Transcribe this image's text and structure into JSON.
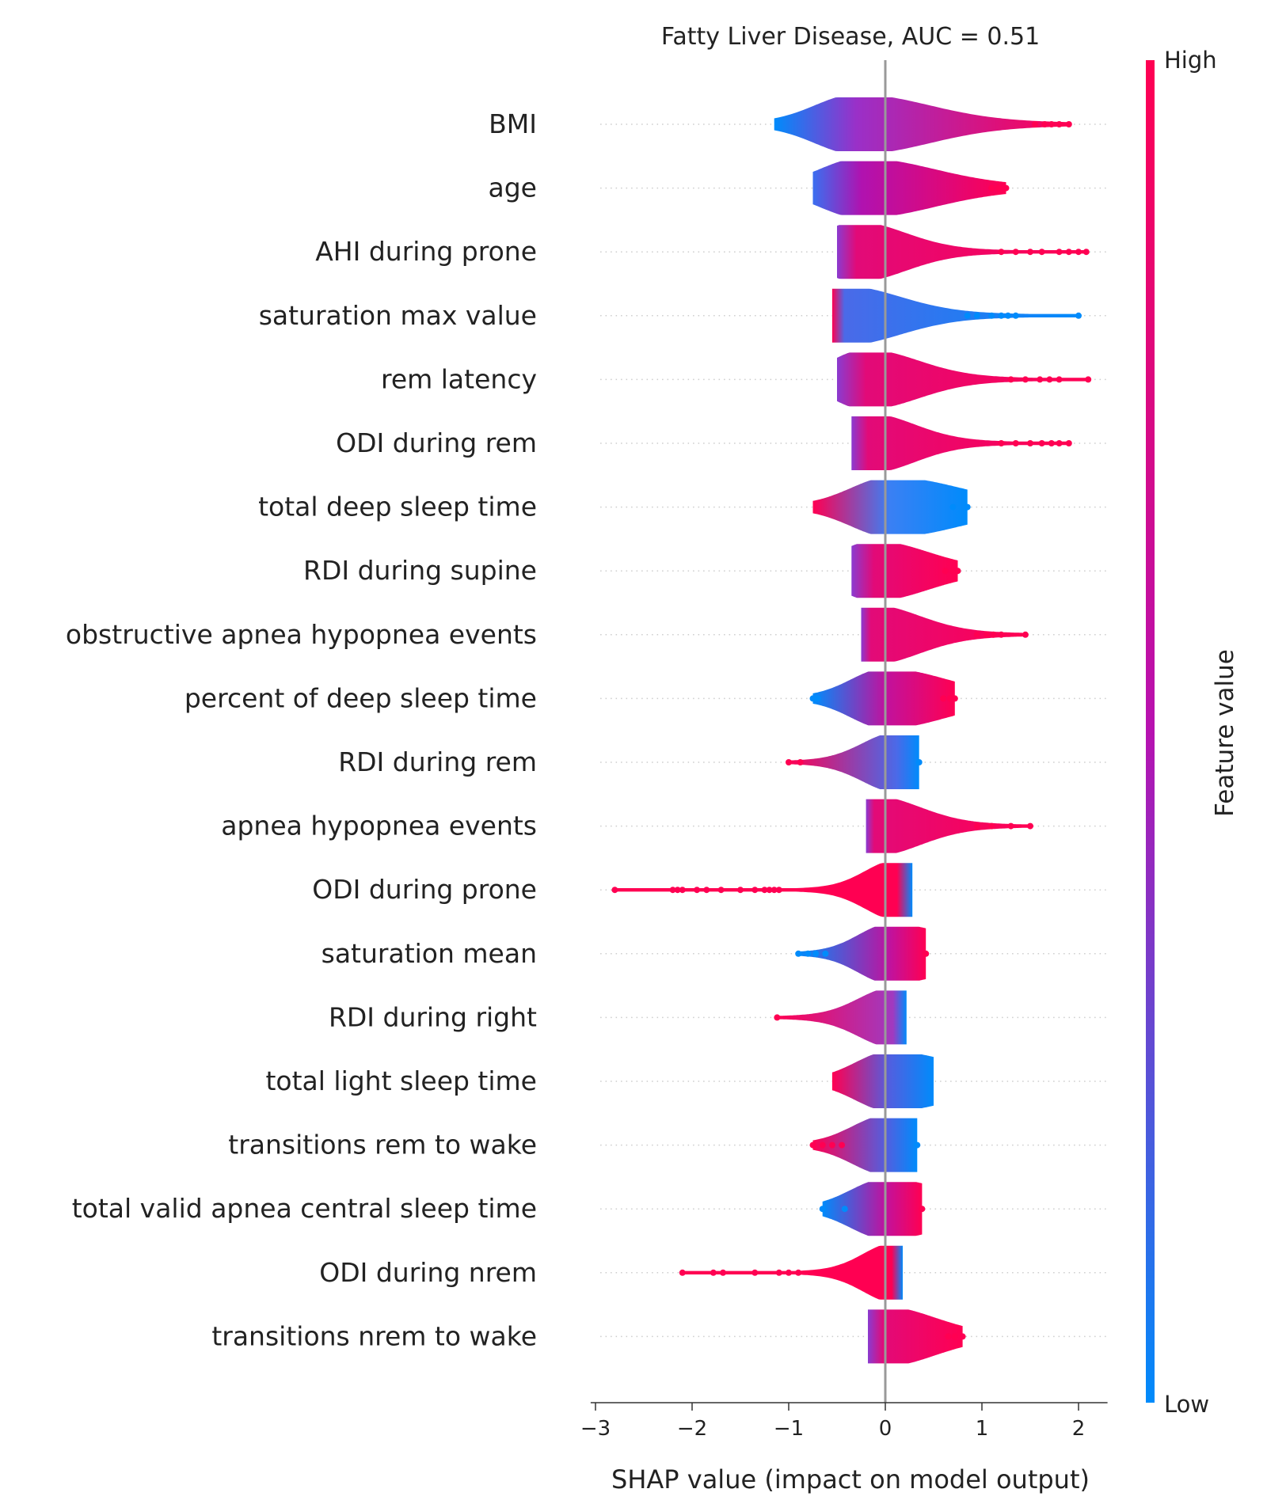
{
  "chart_data": {
    "type": "violin",
    "title": "Fatty Liver Disease, AUC =  0.51",
    "xlabel": "SHAP value (impact on model output)",
    "xlim": [
      -3.05,
      2.3
    ],
    "xticks": [
      -3,
      -2,
      -1,
      0,
      1,
      2
    ],
    "xtick_labels": [
      "−3",
      "−2",
      "−1",
      "0",
      "1",
      "2"
    ],
    "colorbar": {
      "label": "Feature value",
      "high_label": "High",
      "low_label": "Low",
      "high_color": "#ff0052",
      "mid_color": "#b712b0",
      "low_color": "#008bfb"
    },
    "features": [
      {
        "name": "BMI",
        "min": -1.15,
        "max": 1.9,
        "neg_peak": -0.3,
        "neg_width": 0.42,
        "pos_width": 0.32,
        "left_color": "#008bfb",
        "mid_color": "#9a30c8",
        "right_color": "#ff0052",
        "neg_outliers": [],
        "pos_outliers": [
          1.55,
          1.65,
          1.72,
          1.8,
          1.9
        ]
      },
      {
        "name": "age",
        "min": -0.75,
        "max": 1.25,
        "neg_peak": -0.25,
        "neg_width": 0.42,
        "pos_width": 0.32,
        "left_color": "#3a6ff0",
        "mid_color": "#b012b0",
        "right_color": "#ff0052",
        "neg_outliers": [],
        "pos_outliers": [
          1.1,
          1.17,
          1.25
        ]
      },
      {
        "name": "AHI during prone",
        "min": -0.5,
        "max": 2.1,
        "neg_peak": -0.3,
        "neg_width": 0.35,
        "pos_width": 0.15,
        "left_color": "#8a3bd0",
        "mid_color": "#e20a78",
        "right_color": "#ff0052",
        "neg_outliers": [],
        "pos_outliers": [
          1.2,
          1.35,
          1.5,
          1.62,
          1.8,
          1.9,
          2.0,
          2.08
        ]
      },
      {
        "name": "saturation max value",
        "min": -0.55,
        "max": 2.0,
        "neg_peak": -0.45,
        "neg_width": 0.27,
        "pos_width": 0.32,
        "left_color": "#ff0052",
        "mid_color": "#4a6ae8",
        "right_color": "#008bfb",
        "neg_outliers": [],
        "pos_outliers": [
          0.85,
          0.95,
          1.1,
          1.2,
          1.27,
          1.35,
          2.0
        ]
      },
      {
        "name": "rem latency",
        "min": -0.5,
        "max": 2.1,
        "neg_peak": -0.2,
        "neg_width": 0.35,
        "pos_width": 0.18,
        "left_color": "#8a3bd0",
        "mid_color": "#e20a78",
        "right_color": "#ff0052",
        "neg_outliers": [],
        "pos_outliers": [
          1.3,
          1.45,
          1.6,
          1.7,
          1.8,
          2.1
        ]
      },
      {
        "name": "ODI during rem",
        "min": -0.35,
        "max": 1.9,
        "neg_peak": -0.18,
        "neg_width": 0.35,
        "pos_width": 0.12,
        "left_color": "#8a3bd0",
        "mid_color": "#e20a78",
        "right_color": "#ff0052",
        "neg_outliers": [],
        "pos_outliers": [
          1.2,
          1.35,
          1.5,
          1.62,
          1.72,
          1.8,
          1.9
        ]
      },
      {
        "name": "total deep sleep time",
        "min": -0.75,
        "max": 0.85,
        "neg_peak": 0.05,
        "neg_width": 0.4,
        "pos_width": 0.32,
        "left_color": "#ff0052",
        "mid_color": "#3a80f4",
        "right_color": "#008bfb",
        "neg_outliers": [],
        "pos_outliers": [
          0.7,
          0.85
        ]
      },
      {
        "name": "RDI during supine",
        "min": -0.35,
        "max": 0.75,
        "neg_peak": -0.12,
        "neg_width": 0.35,
        "pos_width": 0.2,
        "left_color": "#8a3bd0",
        "mid_color": "#e20a78",
        "right_color": "#ff0052",
        "neg_outliers": [],
        "pos_outliers": [
          0.62,
          0.7,
          0.75
        ]
      },
      {
        "name": "obstructive apnea hypopnea events",
        "min": -0.25,
        "max": 1.45,
        "neg_peak": -0.15,
        "neg_width": 0.35,
        "pos_width": 0.14,
        "left_color": "#8a3bd0",
        "mid_color": "#e20a78",
        "right_color": "#ff0052",
        "neg_outliers": [],
        "pos_outliers": [
          0.95,
          1.05,
          1.12,
          1.2,
          1.45
        ]
      },
      {
        "name": "percent of deep sleep time",
        "min": -0.75,
        "max": 0.72,
        "neg_peak": 0.0,
        "neg_width": 0.35,
        "pos_width": 0.28,
        "left_color": "#008bfb",
        "mid_color": "#c0129e",
        "right_color": "#ff0052",
        "neg_outliers": [
          -0.75,
          -0.7
        ],
        "pos_outliers": [
          0.6,
          0.67,
          0.72
        ]
      },
      {
        "name": "RDI during rem",
        "min": -1.0,
        "max": 0.35,
        "neg_peak": 0.12,
        "neg_width": 0.35,
        "pos_width": 0.32,
        "left_color": "#ff0052",
        "mid_color": "#4a6ae8",
        "right_color": "#008bfb",
        "neg_outliers": [
          -1.0,
          -0.88
        ],
        "pos_outliers": [
          0.35
        ]
      },
      {
        "name": "apnea hypopnea events",
        "min": -0.2,
        "max": 1.5,
        "neg_peak": -0.12,
        "neg_width": 0.35,
        "pos_width": 0.12,
        "left_color": "#8a3bd0",
        "mid_color": "#e20a78",
        "right_color": "#ff0052",
        "neg_outliers": [],
        "pos_outliers": [
          0.95,
          1.1,
          1.3,
          1.5
        ]
      },
      {
        "name": "ODI during prone",
        "min": -2.8,
        "max": 0.28,
        "neg_peak": 0.12,
        "neg_width": 0.32,
        "pos_width": 0.3,
        "left_color": "#ff0052",
        "mid_color": "#ff0052",
        "right_color": "#008bfb",
        "neg_outliers": [
          -2.8,
          -2.2,
          -2.15,
          -2.1,
          -1.95,
          -1.85,
          -1.7,
          -1.5,
          -1.35,
          -1.25,
          -1.2,
          -1.15,
          -1.1
        ],
        "pos_outliers": []
      },
      {
        "name": "saturation mean",
        "min": -0.9,
        "max": 0.42,
        "neg_peak": 0.05,
        "neg_width": 0.32,
        "pos_width": 0.28,
        "left_color": "#008bfb",
        "mid_color": "#c0129e",
        "right_color": "#ff0052",
        "neg_outliers": [
          -0.9,
          -0.8,
          -0.72,
          -0.62
        ],
        "pos_outliers": [
          0.42
        ]
      },
      {
        "name": "RDI during right",
        "min": -1.12,
        "max": 0.22,
        "neg_peak": 0.08,
        "neg_width": 0.35,
        "pos_width": 0.3,
        "left_color": "#ff0052",
        "mid_color": "#a03ac0",
        "right_color": "#008bfb",
        "neg_outliers": [
          -1.12
        ],
        "pos_outliers": []
      },
      {
        "name": "total light sleep time",
        "min": -0.55,
        "max": 0.5,
        "neg_peak": 0.05,
        "neg_width": 0.35,
        "pos_width": 0.3,
        "left_color": "#ff0052",
        "mid_color": "#5060e0",
        "right_color": "#008bfb",
        "neg_outliers": [],
        "pos_outliers": []
      },
      {
        "name": "transitions rem to wake",
        "min": -0.75,
        "max": 0.33,
        "neg_peak": 0.02,
        "neg_width": 0.35,
        "pos_width": 0.3,
        "left_color": "#ff0052",
        "mid_color": "#5060e0",
        "right_color": "#008bfb",
        "neg_outliers": [
          -0.75,
          -0.65,
          -0.55,
          -0.45
        ],
        "pos_outliers": [
          0.33
        ]
      },
      {
        "name": "total valid apnea central sleep time",
        "min": -0.65,
        "max": 0.38,
        "neg_peak": 0.0,
        "neg_width": 0.35,
        "pos_width": 0.28,
        "left_color": "#008bfb",
        "mid_color": "#c0129e",
        "right_color": "#ff0052",
        "neg_outliers": [
          -0.65,
          -0.42
        ],
        "pos_outliers": [
          0.38
        ]
      },
      {
        "name": "ODI during nrem",
        "min": -2.1,
        "max": 0.18,
        "neg_peak": 0.1,
        "neg_width": 0.32,
        "pos_width": 0.3,
        "left_color": "#ff0052",
        "mid_color": "#ff0052",
        "right_color": "#008bfb",
        "neg_outliers": [
          -2.1,
          -1.78,
          -1.68,
          -1.35,
          -1.1,
          -1.0,
          -0.9
        ],
        "pos_outliers": []
      },
      {
        "name": "transitions nrem to wake",
        "min": -0.18,
        "max": 0.8,
        "neg_peak": -0.02,
        "neg_width": 0.32,
        "pos_width": 0.2,
        "left_color": "#8a3bd0",
        "mid_color": "#e20a78",
        "right_color": "#ff0052",
        "neg_outliers": [],
        "pos_outliers": [
          0.65,
          0.72,
          0.8
        ]
      }
    ]
  }
}
